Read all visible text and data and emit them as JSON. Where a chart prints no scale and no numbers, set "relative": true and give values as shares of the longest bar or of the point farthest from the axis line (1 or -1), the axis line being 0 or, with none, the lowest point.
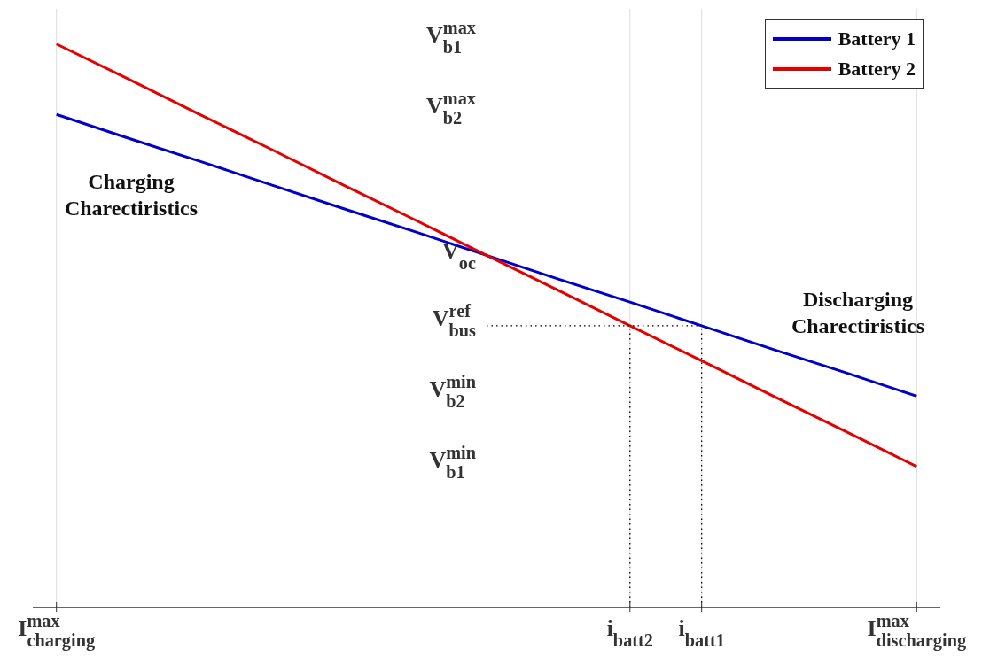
{
  "chart_data": {
    "type": "line",
    "relative": true,
    "categories": [
      "I$^{max}$$_{charging}$",
      null,
      null,
      null,
      null,
      null,
      null,
      null,
      "i$_{batt2}$",
      "i$_{batt1}$",
      null,
      null,
      "I$^{max}$$_{discharging}$"
    ],
    "series": [
      {
        "name": "Battery 1",
        "color": "#0000c8",
        "values": [
          0.875,
          0.833,
          0.792,
          0.75,
          0.708,
          0.667,
          0.625,
          0.583,
          0.542,
          0.5,
          0.458,
          0.417,
          0.375
        ]
      },
      {
        "name": "Battery 2",
        "color": "#e60000",
        "values": [
          1,
          0.938,
          0.875,
          0.813,
          0.75,
          0.688,
          0.625,
          0.563,
          0.5,
          0.438,
          0.375,
          0.313,
          0.25
        ]
      },
      {
        "color": "#000000",
        "line_style": "dotted",
        "values": [
          null,
          null,
          null,
          null,
          null,
          null,
          0.5,
          0.5,
          0.5,
          0.5,
          null,
          null,
          null
        ]
      },
      {
        "color": "#000000",
        "line_style": "dotted",
        "x": [
          "i$_{batt2}$",
          "i$_{batt2}$"
        ],
        "values": [
          0,
          0.5
        ]
      },
      {
        "color": "#000000",
        "line_style": "dotted",
        "x": [
          "i$_{batt1}$",
          "i$_{batt1}$"
        ],
        "values": [
          0,
          0.5
        ]
      }
    ],
    "annotations": [
      "Charging\nCharectiristics",
      "Discharging\nCharectiristics",
      "V$^{max}$$_{b1}$",
      "V$^{max}$$_{b2}$",
      "V$_{oc}$",
      "V$^{ref}$$_{bus}$",
      "V$^{min}$$_{b2}$",
      "V$^{min}$$_{b1}$"
    ],
    "grid": "x",
    "legend": "top right",
    "marker": "none",
    "line_style": "solid"
  }
}
